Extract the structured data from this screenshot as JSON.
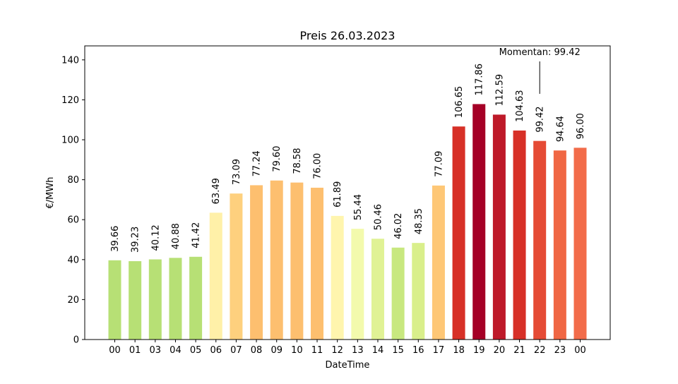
{
  "chart_data": {
    "type": "bar",
    "title": "Preis 26.03.2023",
    "xlabel": "DateTime",
    "ylabel": "€/MWh",
    "ylim": [
      0,
      147
    ],
    "yticks": [
      0,
      20,
      40,
      60,
      80,
      100,
      120,
      140
    ],
    "grid": false,
    "legend": "none",
    "categories": [
      "00",
      "01",
      "03",
      "04",
      "05",
      "06",
      "07",
      "08",
      "09",
      "10",
      "11",
      "12",
      "13",
      "14",
      "15",
      "16",
      "17",
      "18",
      "19",
      "20",
      "21",
      "22",
      "23",
      "00"
    ],
    "values": [
      39.66,
      39.23,
      40.12,
      40.88,
      41.42,
      63.49,
      73.09,
      77.24,
      79.6,
      78.58,
      76.0,
      61.89,
      55.44,
      50.46,
      46.02,
      48.35,
      77.09,
      106.65,
      117.86,
      112.59,
      104.63,
      99.42,
      94.64,
      96.0
    ],
    "value_labels": [
      "39.66",
      "39.23",
      "40.12",
      "40.88",
      "41.42",
      "63.49",
      "73.09",
      "77.24",
      "79.60",
      "78.58",
      "76.00",
      "61.89",
      "55.44",
      "50.46",
      "46.02",
      "48.35",
      "77.09",
      "106.65",
      "117.86",
      "112.59",
      "104.63",
      "99.42",
      "94.64",
      "96.00"
    ],
    "colors": [
      "#b7e075",
      "#b7e075",
      "#b7e075",
      "#b7e075",
      "#b7e075",
      "#fff0a8",
      "#fed07e",
      "#fdbf6f",
      "#fdbf6f",
      "#fdbf6f",
      "#fdbf6f",
      "#fff5ae",
      "#f3faad",
      "#e0f295",
      "#c8e87f",
      "#d9ef8b",
      "#fec776",
      "#d73027",
      "#a50026",
      "#be1a29",
      "#d73027",
      "#e54b35",
      "#f06744",
      "#f26c4a"
    ],
    "annotation": {
      "text": "Momentan: 99.42",
      "value": 123,
      "category_index": 21
    }
  }
}
